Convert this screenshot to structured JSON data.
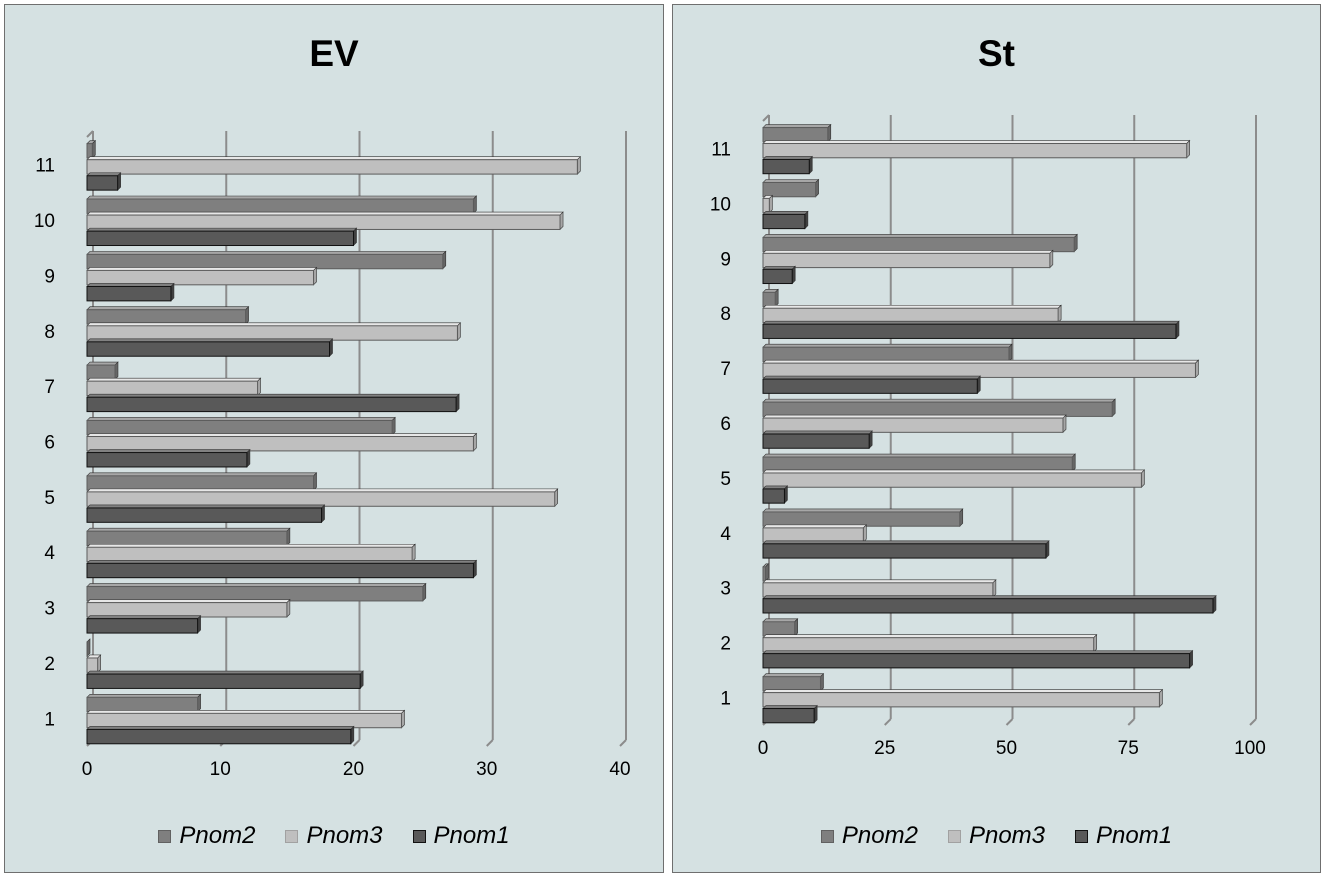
{
  "chart_data": [
    {
      "type": "bar",
      "orientation": "horizontal",
      "title": "EV",
      "categories": [
        "1",
        "2",
        "3",
        "4",
        "5",
        "6",
        "7",
        "8",
        "9",
        "10",
        "11"
      ],
      "x_ticks": [
        "0",
        "10",
        "20",
        "30",
        "40"
      ],
      "xlim": [
        0,
        40
      ],
      "grid": true,
      "legend_position": "bottom",
      "series": [
        {
          "name": "Pnom2",
          "color": "#7f7f7f",
          "values": [
            8.3,
            0.0,
            25.2,
            15.0,
            17.0,
            22.9,
            2.1,
            11.9,
            26.7,
            29.0,
            0.4
          ]
        },
        {
          "name": "Pnom3",
          "color": "#bfbfbf",
          "values": [
            23.6,
            0.8,
            15.0,
            24.4,
            35.1,
            29.0,
            12.8,
            27.8,
            17.0,
            35.5,
            36.8
          ]
        },
        {
          "name": "Pnom1",
          "color": "#595959",
          "values": [
            19.8,
            20.5,
            8.3,
            29.0,
            17.6,
            12.0,
            27.7,
            18.2,
            6.3,
            20.0,
            2.3
          ]
        }
      ]
    },
    {
      "type": "bar",
      "orientation": "horizontal",
      "title": "St",
      "categories": [
        "1",
        "2",
        "3",
        "4",
        "5",
        "6",
        "7",
        "8",
        "9",
        "10",
        "11"
      ],
      "x_ticks": [
        "0",
        "25",
        "50",
        "75",
        "100"
      ],
      "xlim": [
        0,
        100
      ],
      "grid": true,
      "legend_position": "bottom",
      "series": [
        {
          "name": "Pnom2",
          "color": "#7f7f7f",
          "values": [
            11.8,
            6.5,
            0.5,
            40.4,
            63.5,
            71.7,
            50.5,
            2.5,
            63.9,
            10.8,
            13.3
          ]
        },
        {
          "name": "Pnom3",
          "color": "#bfbfbf",
          "values": [
            81.4,
            67.9,
            47.2,
            20.6,
            77.7,
            61.6,
            88.8,
            60.6,
            58.9,
            1.3,
            87.0
          ]
        },
        {
          "name": "Pnom1",
          "color": "#595959",
          "values": [
            10.5,
            87.6,
            92.4,
            58.1,
            4.4,
            21.8,
            44.0,
            84.8,
            6.0,
            8.6,
            9.5
          ]
        }
      ]
    }
  ],
  "legend_order": [
    "Pnom2",
    "Pnom3",
    "Pnom1"
  ]
}
